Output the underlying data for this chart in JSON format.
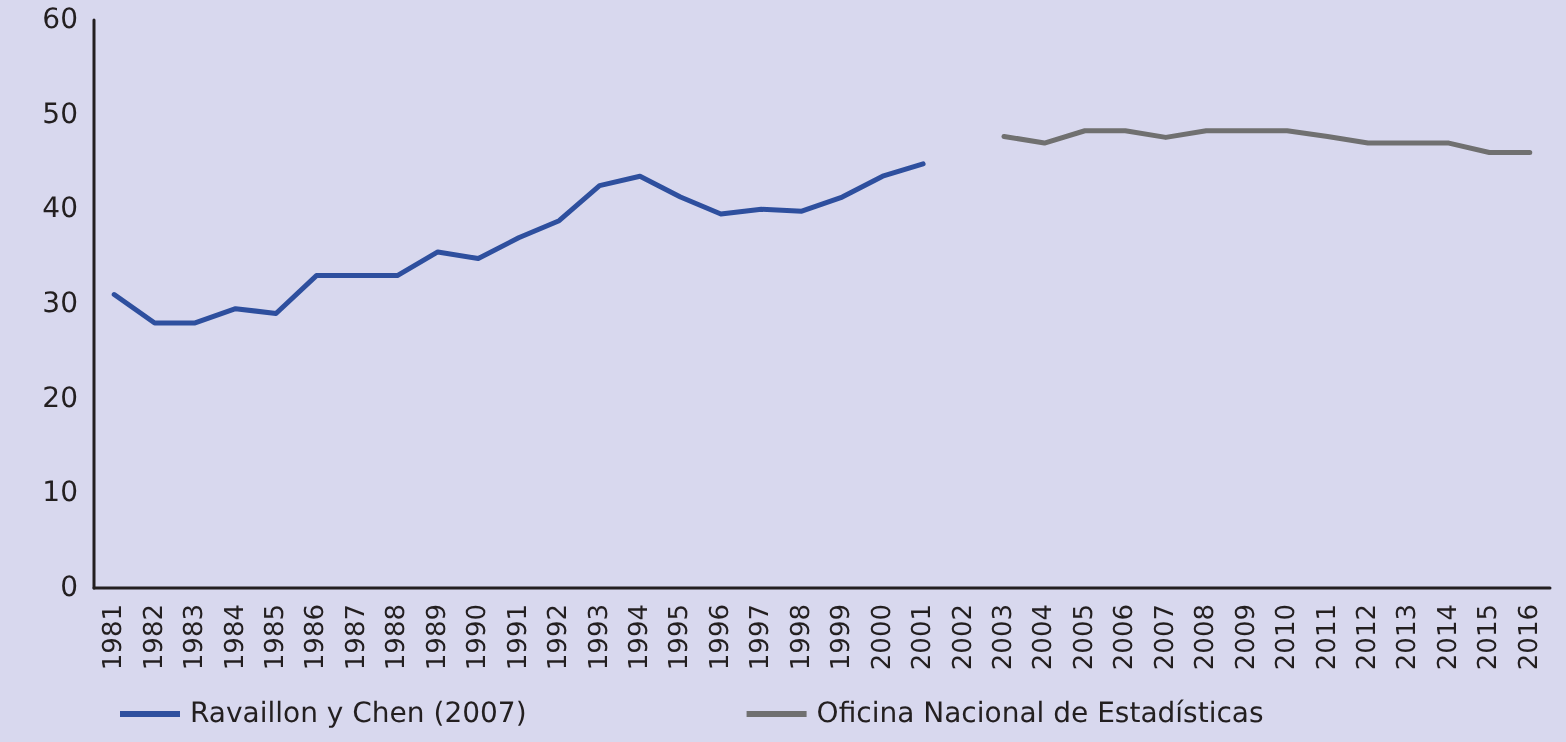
{
  "chart_data": {
    "type": "line",
    "categories": [
      "1981",
      "1982",
      "1983",
      "1984",
      "1985",
      "1986",
      "1987",
      "1988",
      "1989",
      "1990",
      "1991",
      "1992",
      "1993",
      "1994",
      "1995",
      "1996",
      "1997",
      "1998",
      "1999",
      "2000",
      "2001",
      "2002",
      "2003",
      "2004",
      "2005",
      "2006",
      "2007",
      "2008",
      "2009",
      "2010",
      "2011",
      "2012",
      "2013",
      "2014",
      "2015",
      "2016"
    ],
    "series": [
      {
        "name": "Ravaillon y Chen (2007)",
        "color": "#2e4f9e",
        "values": [
          31,
          28,
          28,
          29.5,
          29,
          33,
          33,
          33,
          35.5,
          34.8,
          37,
          38.8,
          42.5,
          43.5,
          41.3,
          39.5,
          40,
          39.8,
          41.3,
          43.5,
          44.8,
          null,
          null,
          null,
          null,
          null,
          null,
          null,
          null,
          null,
          null,
          null,
          null,
          null,
          null,
          null
        ]
      },
      {
        "name": "Oficina Nacional de Estadísticas",
        "color": "#707070",
        "values": [
          null,
          null,
          null,
          null,
          null,
          null,
          null,
          null,
          null,
          null,
          null,
          null,
          null,
          null,
          null,
          null,
          null,
          null,
          null,
          null,
          null,
          null,
          47.7,
          47,
          48.3,
          48.3,
          47.6,
          48.3,
          48.3,
          48.3,
          47.7,
          47,
          47,
          47,
          46,
          46
        ]
      }
    ],
    "ylim": [
      0,
      60
    ],
    "yticks": [
      0,
      10,
      20,
      30,
      40,
      50,
      60
    ],
    "grid": false,
    "legend": "bottom",
    "marker": "none",
    "line_style": "solid"
  }
}
